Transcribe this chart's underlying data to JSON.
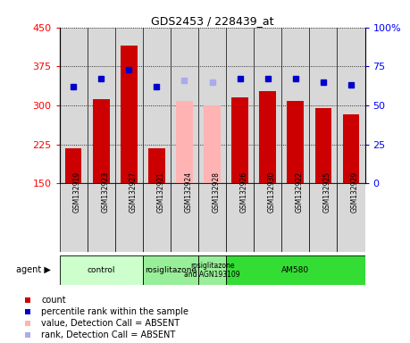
{
  "title": "GDS2453 / 228439_at",
  "samples": [
    "GSM132919",
    "GSM132923",
    "GSM132927",
    "GSM132921",
    "GSM132924",
    "GSM132928",
    "GSM132926",
    "GSM132930",
    "GSM132922",
    "GSM132925",
    "GSM132929"
  ],
  "bar_values": [
    218,
    313,
    415,
    218,
    308,
    300,
    315,
    328,
    308,
    295,
    283
  ],
  "bar_absent": [
    false,
    false,
    false,
    false,
    true,
    true,
    false,
    false,
    false,
    false,
    false
  ],
  "rank_values": [
    62,
    67,
    73,
    62,
    66,
    65,
    67,
    67,
    67,
    65,
    63
  ],
  "rank_absent": [
    false,
    false,
    false,
    false,
    true,
    true,
    false,
    false,
    false,
    false,
    false
  ],
  "ylim_left": [
    150,
    450
  ],
  "ylim_right": [
    0,
    100
  ],
  "yticks_left": [
    150,
    225,
    300,
    375,
    450
  ],
  "yticks_right": [
    0,
    25,
    50,
    75,
    100
  ],
  "bar_color_present": "#cc0000",
  "bar_color_absent": "#ffb3b3",
  "rank_color_present": "#0000cc",
  "rank_color_absent": "#aaaaee",
  "agent_groups": [
    {
      "label": "control",
      "start": 0,
      "end": 3,
      "color": "#ccffcc"
    },
    {
      "label": "rosiglitazone",
      "start": 3,
      "end": 5,
      "color": "#99ee99"
    },
    {
      "label": "rosiglitazone\nand AGN193109",
      "start": 5,
      "end": 6,
      "color": "#99ee99"
    },
    {
      "label": "AM580",
      "start": 6,
      "end": 11,
      "color": "#33dd33"
    }
  ],
  "legend_items": [
    {
      "color": "#cc0000",
      "label": "count"
    },
    {
      "color": "#0000cc",
      "label": "percentile rank within the sample"
    },
    {
      "color": "#ffb3b3",
      "label": "value, Detection Call = ABSENT"
    },
    {
      "color": "#aaaaee",
      "label": "rank, Detection Call = ABSENT"
    }
  ]
}
